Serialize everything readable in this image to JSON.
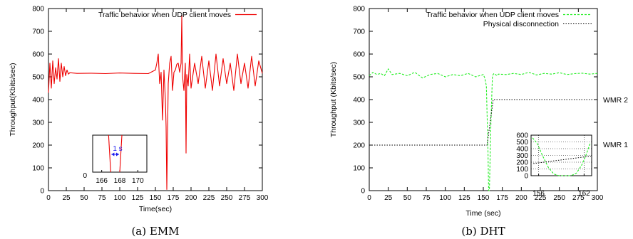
{
  "chart_data": [
    {
      "type": "line",
      "caption": "(a) EMM",
      "xlabel": "Time(sec)",
      "ylabel": "Throughput(Kbits/sec)",
      "xlim": [
        0,
        300
      ],
      "ylim": [
        0,
        800
      ],
      "xticks": [
        0,
        25,
        50,
        75,
        100,
        125,
        150,
        175,
        200,
        225,
        250,
        275,
        300
      ],
      "yticks": [
        0,
        100,
        200,
        300,
        400,
        500,
        600,
        700,
        800
      ],
      "legend_position": "top-right",
      "series": [
        {
          "name": "Traffic behavior when UDP client moves",
          "color": "#ee0000",
          "x": [
            0,
            2,
            4,
            6,
            8,
            10,
            12,
            14,
            16,
            18,
            20,
            22,
            24,
            26,
            28,
            30,
            40,
            60,
            80,
            100,
            120,
            140,
            150,
            152,
            154,
            156,
            158,
            160,
            162,
            164,
            165,
            166,
            167,
            168,
            170,
            172,
            174,
            176,
            178,
            180,
            182,
            184,
            186,
            187,
            188,
            190,
            192,
            193,
            194,
            196,
            198,
            200,
            205,
            210,
            215,
            220,
            225,
            230,
            235,
            240,
            245,
            250,
            255,
            260,
            265,
            270,
            275,
            280,
            285,
            290,
            295,
            300
          ],
          "values": [
            430,
            560,
            450,
            570,
            470,
            540,
            490,
            580,
            480,
            560,
            500,
            545,
            505,
            530,
            512,
            518,
            515,
            516,
            514,
            517,
            515,
            514,
            530,
            560,
            600,
            470,
            520,
            310,
            530,
            400,
            280,
            5,
            240,
            470,
            560,
            590,
            440,
            520,
            530,
            555,
            560,
            520,
            560,
            770,
            505,
            440,
            560,
            165,
            510,
            460,
            600,
            450,
            560,
            470,
            590,
            450,
            570,
            440,
            600,
            460,
            580,
            470,
            560,
            440,
            600,
            470,
            560,
            450,
            590,
            460,
            570,
            515
          ]
        }
      ],
      "inset": {
        "xticks": [
          166,
          168,
          170
        ],
        "ytick": 0,
        "xlim": [
          165,
          171
        ],
        "annotation": "1 s",
        "interval": [
          167,
          168
        ]
      }
    },
    {
      "type": "line",
      "caption": "(b) DHT",
      "xlabel": "Time (sec)",
      "ylabel": "Throughput (Kbits/sec)",
      "xlim": [
        0,
        300
      ],
      "ylim": [
        0,
        800
      ],
      "xticks": [
        0,
        25,
        50,
        75,
        100,
        125,
        150,
        175,
        200,
        225,
        250,
        275,
        300
      ],
      "yticks": [
        0,
        100,
        200,
        300,
        400,
        500,
        600,
        700,
        800
      ],
      "legend_position": "top-right",
      "series": [
        {
          "name": "Traffic behavior when UDP client moves",
          "color": "#22ee22",
          "x": [
            0,
            5,
            10,
            15,
            20,
            25,
            30,
            40,
            50,
            60,
            70,
            80,
            90,
            100,
            110,
            120,
            130,
            140,
            150,
            152,
            154,
            156,
            157,
            158,
            160,
            162,
            164,
            166,
            168,
            170,
            180,
            190,
            200,
            210,
            220,
            230,
            240,
            250,
            260,
            270,
            280,
            290,
            300
          ],
          "values": [
            505,
            520,
            510,
            515,
            505,
            535,
            510,
            515,
            505,
            520,
            495,
            510,
            515,
            500,
            510,
            505,
            515,
            500,
            510,
            495,
            460,
            200,
            0,
            0,
            300,
            505,
            515,
            510,
            505,
            512,
            510,
            515,
            510,
            520,
            508,
            515,
            512,
            518,
            510,
            514,
            516,
            512,
            515
          ]
        },
        {
          "name": "Physical disconnection",
          "color": "#000000",
          "x": [
            0,
            155,
            163,
            300
          ],
          "values": [
            200,
            200,
            400,
            400
          ]
        }
      ],
      "annotations": [
        "WMR 2",
        "WMR 1"
      ],
      "inset": {
        "xticks": [
          156,
          162
        ],
        "yticks": [
          0,
          100,
          200,
          300,
          400,
          500,
          600
        ],
        "xlim": [
          155,
          163
        ],
        "ylim": [
          0,
          600
        ]
      }
    }
  ]
}
